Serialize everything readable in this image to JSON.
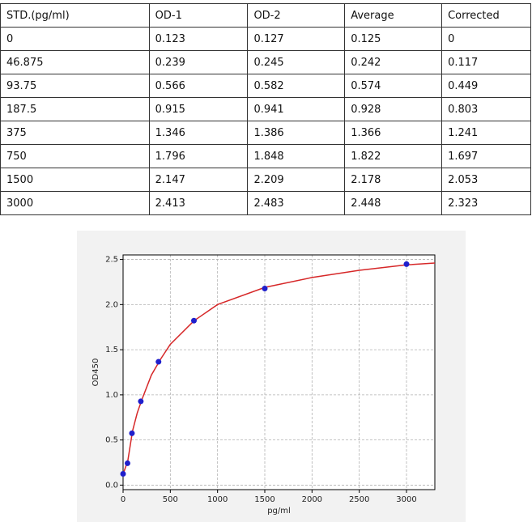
{
  "table": {
    "header": [
      "STD.(pg/ml)",
      "OD-1",
      "OD-2",
      "Average",
      "Corrected"
    ],
    "rows": [
      [
        "0",
        "0.123",
        "0.127",
        "0.125",
        "0"
      ],
      [
        "46.875",
        "0.239",
        "0.245",
        "0.242",
        "0.117"
      ],
      [
        "93.75",
        "0.566",
        "0.582",
        "0.574",
        "0.449"
      ],
      [
        "187.5",
        "0.915",
        "0.941",
        "0.928",
        "0.803"
      ],
      [
        "375",
        "1.346",
        "1.386",
        "1.366",
        "1.241"
      ],
      [
        "750",
        "1.796",
        "1.848",
        "1.822",
        "1.697"
      ],
      [
        "1500",
        "2.147",
        "2.209",
        "2.178",
        "2.053"
      ],
      [
        "3000",
        "2.413",
        "2.483",
        "2.448",
        "2.323"
      ]
    ]
  },
  "chart_data": {
    "type": "scatter",
    "xlabel": "pg/ml",
    "ylabel": "OD450",
    "xlim": [
      0,
      3300
    ],
    "ylim": [
      -0.05,
      2.55
    ],
    "xticks": [
      0,
      500,
      1000,
      1500,
      2000,
      2500,
      3000
    ],
    "yticks": [
      {
        "value": 0,
        "label": "0.0"
      },
      0.5,
      {
        "value": 1,
        "label": "1.0"
      },
      1.5,
      {
        "value": 2,
        "label": "2.0"
      },
      2.5
    ],
    "grid": true,
    "series": [
      {
        "type": "line",
        "color": "#d62728",
        "x": [
          0,
          50,
          100,
          150,
          200,
          300,
          400,
          500,
          750,
          1000,
          1500,
          2000,
          2500,
          3000,
          3300
        ],
        "values": [
          0.12,
          0.27,
          0.6,
          0.8,
          0.95,
          1.22,
          1.4,
          1.56,
          1.82,
          2.0,
          2.19,
          2.3,
          2.38,
          2.44,
          2.46
        ]
      },
      {
        "type": "scatter",
        "color": "#1f1fcc",
        "x": [
          0,
          46.875,
          93.75,
          187.5,
          375,
          750,
          1500,
          3000
        ],
        "values": [
          0.125,
          0.242,
          0.574,
          0.928,
          1.366,
          1.822,
          2.178,
          2.448
        ]
      }
    ]
  }
}
